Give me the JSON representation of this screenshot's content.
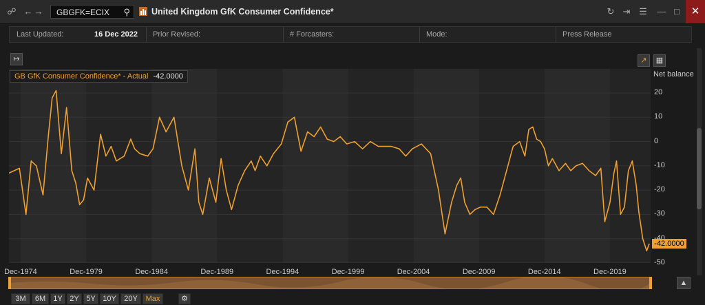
{
  "toolbar": {
    "ric": "GBGFK=ECIX",
    "title": "United Kingdom GfK Consumer Confidence*",
    "close_glyph": "✕"
  },
  "info": {
    "last_updated_label": "Last Updated:",
    "last_updated_value": "16 Dec 2022",
    "prior_revised_label": "Prior Revised:",
    "forecasters_label": "# Forcasters:",
    "mode_label": "Mode:",
    "press_release": "Press Release"
  },
  "icons": {
    "link": "link-icon",
    "back": "back-arrow-icon",
    "forward": "forward-arrow-icon",
    "search": "search-icon",
    "app": "chart-app-icon",
    "refresh": "refresh-icon",
    "share": "share-icon",
    "menu": "menu-icon",
    "minimize": "minimize-icon",
    "maximize": "maximize-icon",
    "close": "close-icon",
    "collapse": "panel-toggle-icon",
    "chart_view": "line-chart-view-icon",
    "table_view": "table-view-icon",
    "settings": "gear-icon",
    "export": "export-chart-icon"
  },
  "colors": {
    "series": "#f0a030",
    "accent_link": "#4aa3ff"
  },
  "range_buttons": [
    "3M",
    "6M",
    "1Y",
    "2Y",
    "5Y",
    "10Y",
    "20Y",
    "Max"
  ],
  "active_range": "Max",
  "chart_data": {
    "type": "line",
    "legend": {
      "name": "GB GfK Consumer Confidence* - Actual",
      "value": "-42.0000"
    },
    "last_value_label": "-42.0000",
    "ylabel": "Net balance",
    "ylim": [
      -50,
      25
    ],
    "yticks": [
      20,
      10,
      0,
      -10,
      -20,
      -30,
      -40,
      -50
    ],
    "xlim": [
      1974.0,
      2023.0
    ],
    "xticks": [
      {
        "label": "Dec-1974",
        "x": 1974.9
      },
      {
        "label": "Dec-1979",
        "x": 1979.9
      },
      {
        "label": "Dec-1984",
        "x": 1984.9
      },
      {
        "label": "Dec-1989",
        "x": 1989.9
      },
      {
        "label": "Dec-1994",
        "x": 1994.9
      },
      {
        "label": "Dec-1999",
        "x": 1999.9
      },
      {
        "label": "Dec-2004",
        "x": 2004.9
      },
      {
        "label": "Dec-2009",
        "x": 2009.9
      },
      {
        "label": "Dec-2014",
        "x": 2014.9
      },
      {
        "label": "Dec-2019",
        "x": 2019.9
      }
    ],
    "grid": true,
    "series": [
      {
        "name": "GB GfK Consumer Confidence* - Actual",
        "x": [
          1974.0,
          1974.8,
          1975.3,
          1975.7,
          1976.1,
          1976.6,
          1977.0,
          1977.3,
          1977.6,
          1978.0,
          1978.4,
          1978.8,
          1979.1,
          1979.4,
          1979.7,
          1980.0,
          1980.5,
          1981.0,
          1981.4,
          1981.8,
          1982.2,
          1982.8,
          1983.3,
          1983.6,
          1984.0,
          1984.6,
          1985.0,
          1985.5,
          1986.0,
          1986.6,
          1987.2,
          1987.7,
          1988.2,
          1988.5,
          1988.8,
          1989.3,
          1989.8,
          1990.2,
          1990.6,
          1991.0,
          1991.5,
          1992.0,
          1992.5,
          1992.8,
          1993.2,
          1993.7,
          1994.2,
          1994.8,
          1995.3,
          1995.8,
          1996.3,
          1996.8,
          1997.3,
          1997.8,
          1998.3,
          1998.8,
          1999.3,
          1999.8,
          2000.4,
          2001.0,
          2001.6,
          2002.2,
          2002.8,
          2003.2,
          2003.8,
          2004.3,
          2004.8,
          2005.5,
          2006.2,
          2006.8,
          2007.3,
          2007.8,
          2008.2,
          2008.5,
          2008.8,
          2009.2,
          2009.6,
          2010.0,
          2010.5,
          2011.0,
          2011.5,
          2012.0,
          2012.5,
          2013.0,
          2013.4,
          2013.7,
          2014.0,
          2014.3,
          2014.6,
          2014.9,
          2015.2,
          2015.5,
          2016.0,
          2016.5,
          2016.9,
          2017.3,
          2017.8,
          2018.3,
          2018.8,
          2019.2,
          2019.5,
          2019.9,
          2020.2,
          2020.4,
          2020.7,
          2021.0,
          2021.3,
          2021.6,
          2021.9,
          2022.1,
          2022.4,
          2022.7,
          2022.9
        ],
        "y": [
          -13,
          -11,
          -30,
          -8,
          -10,
          -22,
          2,
          18,
          21,
          -5,
          14,
          -12,
          -17,
          -26,
          -24,
          -15,
          -20,
          3,
          -6,
          -2,
          -8,
          -6,
          1,
          -3,
          -5,
          -6,
          -3,
          10,
          4,
          10,
          -10,
          -20,
          -3,
          -25,
          -30,
          -15,
          -25,
          -7,
          -20,
          -28,
          -18,
          -12,
          -8,
          -12,
          -6,
          -10,
          -5,
          -1,
          8,
          10,
          -4,
          4,
          2,
          6,
          1,
          0,
          2,
          -1,
          0,
          -3,
          0,
          -2,
          -2,
          -2,
          -3,
          -6,
          -3,
          -1,
          -5,
          -20,
          -38,
          -25,
          -18,
          -15,
          -25,
          -30,
          -28,
          -27,
          -27,
          -30,
          -22,
          -12,
          -2,
          0,
          -6,
          5,
          6,
          1,
          0,
          -3,
          -10,
          -7,
          -12,
          -9,
          -12,
          -10,
          -9,
          -12,
          -14,
          -11,
          -33,
          -25,
          -13,
          -8,
          -30,
          -27,
          -12,
          -8,
          -18,
          -29,
          -40,
          -45,
          -42
        ]
      }
    ]
  }
}
